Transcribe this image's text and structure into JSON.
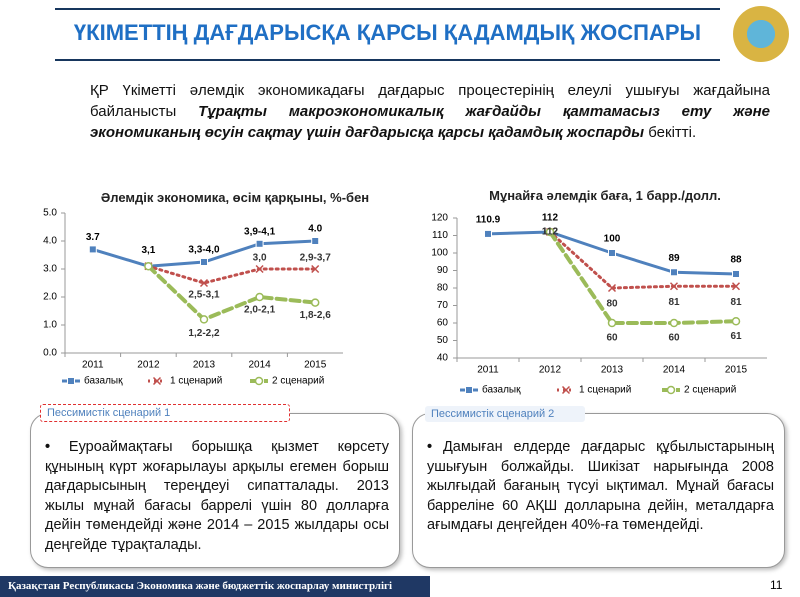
{
  "header": {
    "title": "ҮКІМЕТТІҢ ДАҒДАРЫСҚА ҚАРСЫ ҚАДАМДЫҚ ЖОСПАРЫ"
  },
  "intro": {
    "text": "ҚР Үкіметті әлемдік экономикадағы дағдарыс процестерінің елеулі ушығуы жағдайына байланысты ",
    "emphasis": "Тұрақты макроэкономикалық жағдайды қамтамасыз ету және экономиканың өсуін сақтау үшін дағдарысқа қарсы қадамдық жоспарды",
    "tail": " бекітті."
  },
  "chart_data": [
    {
      "type": "line",
      "title": "Әлемдік экономика, өсім қарқыны, %-бен",
      "categories": [
        "2011",
        "2012",
        "2013",
        "2014",
        "2015"
      ],
      "ylim": [
        0,
        5
      ],
      "yticks": [
        {
          "value": 0,
          "label": "0.0"
        },
        {
          "value": 1,
          "label": "1.0"
        },
        {
          "value": 2,
          "label": "2.0"
        },
        {
          "value": 3,
          "label": "3.0"
        },
        {
          "value": 4,
          "label": "4.0"
        },
        {
          "value": 5,
          "label": "5.0"
        }
      ],
      "series": [
        {
          "name": "базалық",
          "color": "#4f81bd",
          "values": [
            3.7,
            3.1,
            3.25,
            3.9,
            4.0
          ],
          "value_labels": [
            "3.7",
            "3,1",
            "3,3-4,0",
            "3,9-4,1",
            "4.0"
          ]
        },
        {
          "name": "1 сценарий",
          "color": "#c0504d",
          "values": [
            null,
            3.1,
            2.5,
            3.0,
            3.0
          ],
          "value_labels": [
            null,
            null,
            "2,5-3,1",
            "3,0",
            "2,9-3,7"
          ]
        },
        {
          "name": "2 сценарий",
          "color": "#9bbb59",
          "values": [
            null,
            3.1,
            1.2,
            2.0,
            1.8
          ],
          "value_labels": [
            null,
            null,
            "1,2-2,2",
            "2,0-2,1",
            "1,8-2,6"
          ]
        }
      ]
    },
    {
      "type": "line",
      "title": "Мұнайға әлемдік баға, 1 барр./долл.",
      "categories": [
        "2011",
        "2012",
        "2013",
        "2014",
        "2015"
      ],
      "ylim": [
        40,
        120
      ],
      "yticks": [
        40,
        50,
        60,
        70,
        80,
        90,
        100,
        110,
        120
      ],
      "series": [
        {
          "name": "базалық",
          "color": "#4f81bd",
          "values": [
            110.9,
            112,
            100,
            89,
            88
          ]
        },
        {
          "name": "1 сценарий",
          "color": "#c0504d",
          "values": [
            null,
            112,
            80,
            81,
            81
          ]
        },
        {
          "name": "2 сценарий",
          "color": "#9bbb59",
          "values": [
            null,
            112,
            60,
            60,
            61
          ]
        }
      ]
    }
  ],
  "boxes": [
    {
      "tab": "Пессимистік сценарий 1",
      "text": "Еуроаймақтағы борышқа қызмет көрсету құнының күрт жоғарылауы арқылы егемен борыш дағдарысының тереңдеуі сипатталады. 2013 жылы мұнай бағасы баррелі үшін 80 долларға дейін төмендейді және 2014 – 2015 жылдары осы деңгейде тұрақталады."
    },
    {
      "tab": "Пессимистік сценарий 2",
      "text": "Дамыған елдерде дағдарыс құбылыстарының ушығуын болжайды. Шикізат нарығында 2008 жылғыдай бағаның түсуі ықтимал. Мұнай бағасы барреліне 60 АҚШ долларына дейін, металдарға ағымдағы деңгейден 40%-ға төмендейді."
    }
  ],
  "footer": {
    "ministry": "Қазақстан Республикасы Экономика және бюджеттік жоспарлау министрлігі",
    "page": "11"
  }
}
